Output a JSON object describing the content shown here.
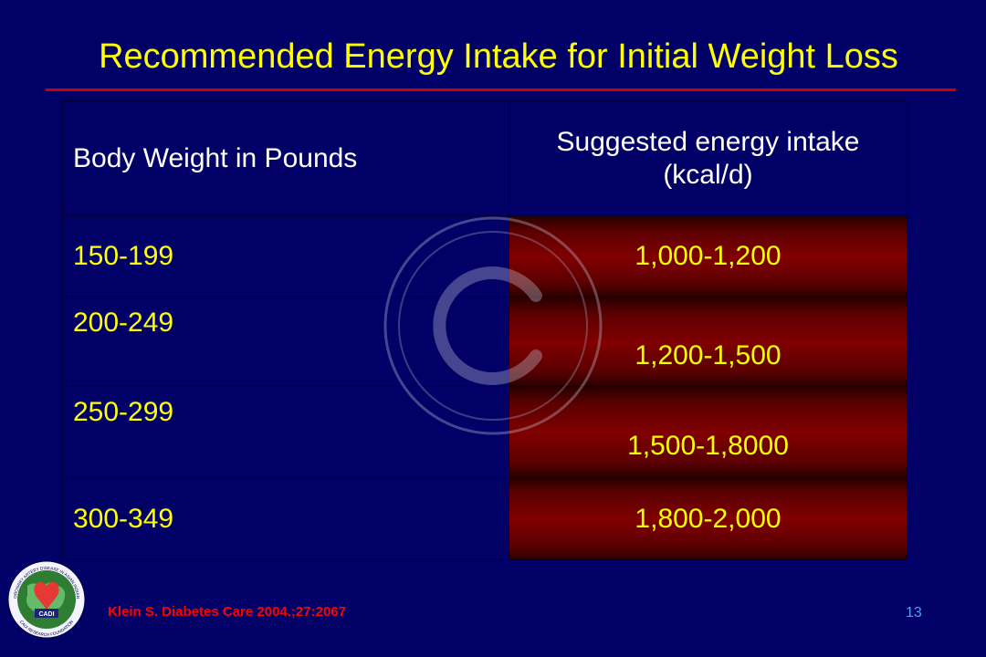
{
  "slide": {
    "title": "Recommended Energy Intake for Initial Weight Loss",
    "citation": "Klein S. Diabetes Care 2004.;27:2067",
    "page_number": "13"
  },
  "table": {
    "headers": {
      "weight": "Body Weight in Pounds",
      "intake_line1": "Suggested energy intake",
      "intake_line2": "(kcal/d)"
    },
    "rows": [
      {
        "weight": "150-199",
        "intake": "1,000-1,200"
      },
      {
        "weight": "200-249",
        "intake": "1,200-1,500"
      },
      {
        "weight": "250-299",
        "intake": "1,500-1,8000"
      },
      {
        "weight": "300-349",
        "intake": "1,800-2,000"
      }
    ]
  },
  "logo": {
    "top_text": "CORONARY ARTERY DISEASE IN ASIAN INDIANS",
    "center_text": "CADI",
    "bottom_text": "CADI RESEARCH FOUNDATION"
  },
  "colors": {
    "background": "#000066",
    "title": "#ffff00",
    "rule": "#cc0000",
    "cell_text": "#ffff00",
    "header_text": "#ffffff",
    "shade": "#800000",
    "citation": "#ff0000",
    "page_number": "#4d9fff"
  },
  "icons": {
    "watermark": "copyright-icon",
    "logo": "cadi-logo-icon"
  }
}
